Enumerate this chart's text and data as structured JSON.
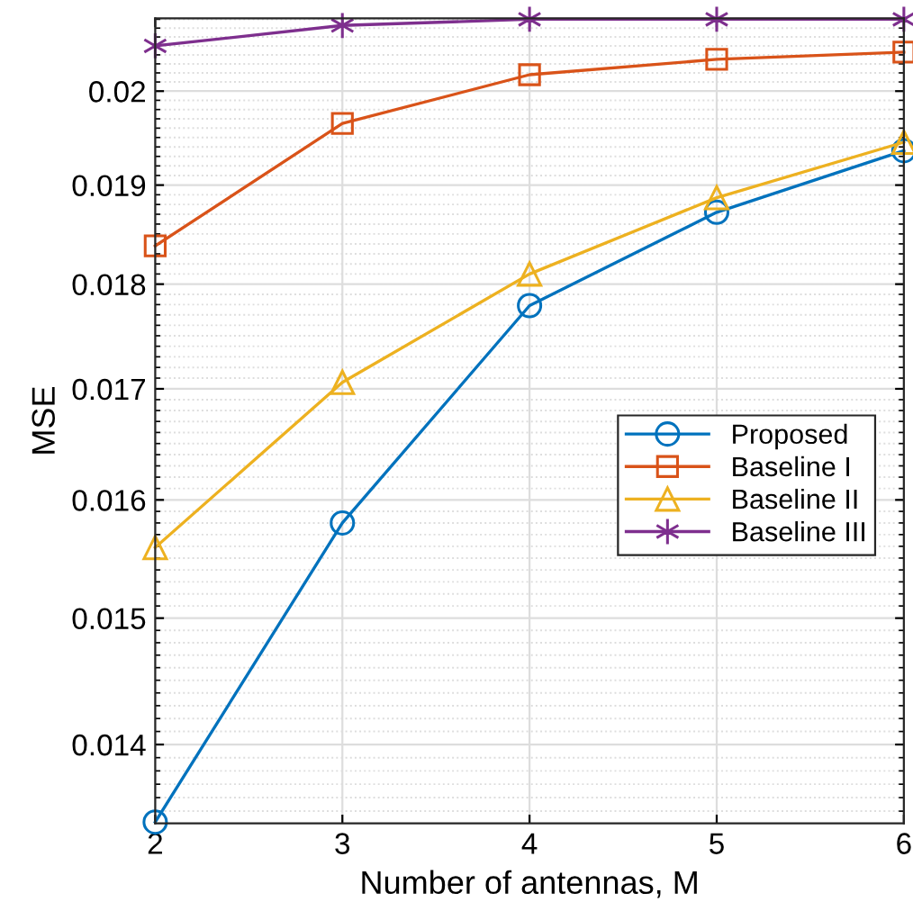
{
  "chart_data": {
    "type": "line",
    "xlabel": "Number of antennas, M",
    "ylabel": "MSE",
    "x": [
      2,
      3,
      4,
      5,
      6
    ],
    "series": [
      {
        "name": "Proposed",
        "color": "#0072bd",
        "marker": "circle",
        "values": [
          0.01342,
          0.0158,
          0.01779,
          0.01872,
          0.01936
        ]
      },
      {
        "name": "Baseline I",
        "color": "#d95319",
        "marker": "square",
        "values": [
          0.01838,
          0.01965,
          0.02018,
          0.02035,
          0.02043
        ]
      },
      {
        "name": "Baseline II",
        "color": "#edb120",
        "marker": "triangle",
        "values": [
          0.01559,
          0.01706,
          0.0181,
          0.01887,
          0.01945
        ]
      },
      {
        "name": "Baseline III",
        "color": "#7e2f8e",
        "marker": "cross",
        "values": [
          0.0205,
          0.02073,
          0.0208,
          0.0208,
          0.0208
        ]
      }
    ],
    "log": "y",
    "xlim": [
      2,
      6
    ],
    "xticks": [
      2,
      3,
      4,
      5,
      6
    ],
    "ylim": [
      0.01341,
      0.02081
    ],
    "yticks": [
      0.014,
      0.015,
      0.016,
      0.017,
      0.018,
      0.019,
      0.02
    ],
    "grid": true,
    "legend": "center right",
    "line_style": "solid"
  }
}
